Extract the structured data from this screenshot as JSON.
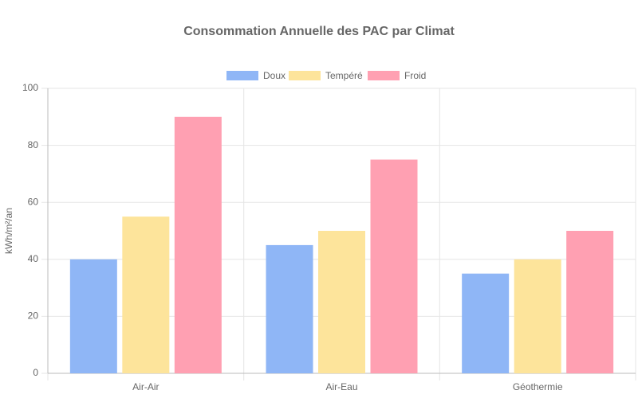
{
  "chart_data": {
    "type": "bar",
    "title": "Consommation Annuelle des PAC par Climat",
    "y_label": "kWh/m²/an",
    "categories": [
      "Air-Air",
      "Air-Eau",
      "Géothermie"
    ],
    "series": [
      {
        "name": "Doux",
        "color": "#8fb6f6",
        "values": [
          40,
          45,
          35
        ]
      },
      {
        "name": "Tempéré",
        "color": "#fde49b",
        "values": [
          55,
          50,
          40
        ]
      },
      {
        "name": "Froid",
        "color": "#ffa0b2",
        "values": [
          90,
          75,
          50
        ]
      }
    ],
    "ylim": [
      0,
      100
    ],
    "yticks": [
      0,
      20,
      40,
      60,
      80,
      100
    ],
    "grid": true
  }
}
